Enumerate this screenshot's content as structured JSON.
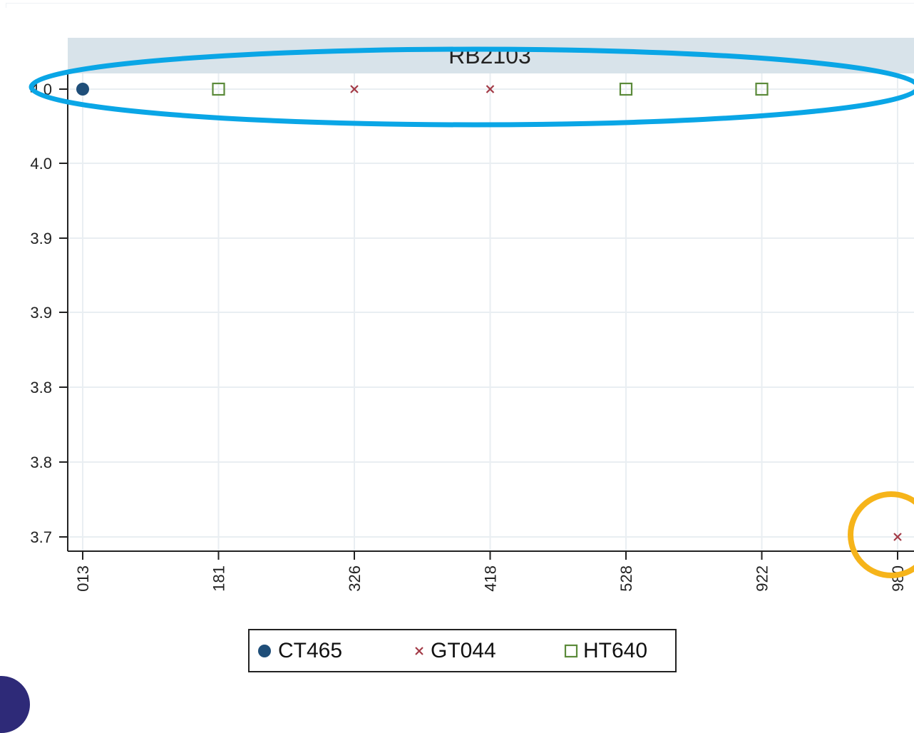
{
  "chart_data": {
    "type": "scatter",
    "title": "RB2103",
    "xlabel": "",
    "ylabel": "",
    "categories": [
      "013",
      "181",
      "326",
      "418",
      "528",
      "922",
      "980"
    ],
    "y_tick_labels": [
      "4.0",
      "4.0",
      "3.9",
      "3.9",
      "3.8",
      "3.8",
      "3.7"
    ],
    "ylim": [
      3.7,
      4.0
    ],
    "grid": true,
    "legend_position": "bottom",
    "series": [
      {
        "name": "CT465",
        "marker": "circle",
        "color": "#1f4e79",
        "points": [
          {
            "x": "013",
            "y": 4.0
          }
        ]
      },
      {
        "name": "GT044",
        "marker": "x",
        "color": "#a33b47",
        "points": [
          {
            "x": "326",
            "y": 4.0
          },
          {
            "x": "418",
            "y": 4.0
          },
          {
            "x": "980",
            "y": 3.7
          }
        ]
      },
      {
        "name": "HT640",
        "marker": "square",
        "color": "#5b8a3a",
        "points": [
          {
            "x": "181",
            "y": 4.0
          },
          {
            "x": "528",
            "y": 4.0
          },
          {
            "x": "922",
            "y": 4.0
          }
        ]
      }
    ],
    "annotations": [
      {
        "shape": "ellipse",
        "color": "#0aa6e6",
        "highlights": "top row of points"
      },
      {
        "shape": "circle",
        "color": "#f6b41a",
        "highlights": "point at 980"
      }
    ]
  },
  "colors": {
    "title_strip": "#d8e3ea",
    "grid": "#e9eef2",
    "axis": "#222222"
  }
}
